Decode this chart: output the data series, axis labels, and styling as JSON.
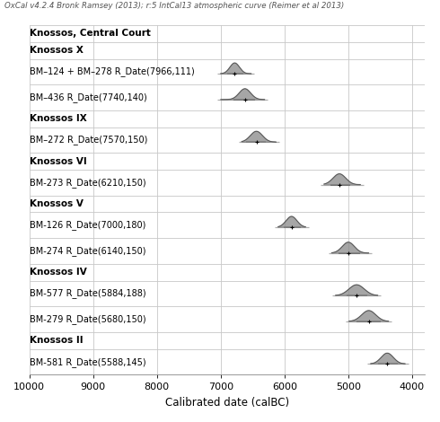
{
  "title": "OxCal v4.2.4 Bronk Ramsey (2013); r:5 IntCal13 atmospheric curve (Reimer et al 2013)",
  "xlabel": "Calibrated date (calBC)",
  "xlim": [
    10000,
    3800
  ],
  "xticks": [
    10000,
    9000,
    8000,
    7000,
    6000,
    5000,
    4000
  ],
  "background": "#ffffff",
  "grid_color": "#c8c8c8",
  "dist_color": "#888888",
  "dist_edge": "#444444",
  "label_fontsize": 7.0,
  "group_label_fontsize": 7.5,
  "title_fontsize": 6.2,
  "sections": [
    {
      "group_label": "Knossos, Central Court",
      "samples": []
    },
    {
      "group_label": "Knossos X",
      "samples": [
        {
          "label": "BM–124 + BM–278 R_Date(7966,111)",
          "cal_mean": 6780,
          "cal_sigma": 75,
          "r1lo": 6900,
          "r1hi": 6640,
          "r2lo": 7050,
          "r2hi": 6470
        },
        {
          "label": "BM–436 R_Date(7740,140)",
          "cal_mean": 6620,
          "cal_sigma": 90,
          "r1lo": 6800,
          "r1hi": 6460,
          "r2lo": 7050,
          "r2hi": 6260
        }
      ]
    },
    {
      "group_label": "Knossos IX",
      "samples": [
        {
          "label": "BM–272 R_Date(7570,150)",
          "cal_mean": 6440,
          "cal_sigma": 95,
          "r1lo": 6600,
          "r1hi": 6290,
          "r2lo": 6720,
          "r2hi": 6080
        }
      ]
    },
    {
      "group_label": "Knossos VI",
      "samples": [
        {
          "label": "BM-273 R_Date(6210,150)",
          "cal_mean": 5140,
          "cal_sigma": 100,
          "r1lo": 5280,
          "r1hi": 4970,
          "r2lo": 5430,
          "r2hi": 4760
        }
      ]
    },
    {
      "group_label": "Knossos V",
      "samples": [
        {
          "label": "BM-126 R_Date(7000,180)",
          "cal_mean": 5890,
          "cal_sigma": 85,
          "r1lo": 6010,
          "r1hi": 5750,
          "r2lo": 6150,
          "r2hi": 5620
        },
        {
          "label": "BM-274 R_Date(6140,150)",
          "cal_mean": 5000,
          "cal_sigma": 95,
          "r1lo": 5150,
          "r1hi": 4820,
          "r2lo": 5310,
          "r2hi": 4630
        }
      ]
    },
    {
      "group_label": "Knossos IV",
      "samples": [
        {
          "label": "BM-577 R_Date(5884,188)",
          "cal_mean": 4870,
          "cal_sigma": 120,
          "r1lo": 5020,
          "r1hi": 4700,
          "r2lo": 5250,
          "r2hi": 4490
        },
        {
          "label": "BM-279 R_Date(5680,150)",
          "cal_mean": 4680,
          "cal_sigma": 110,
          "r1lo": 4870,
          "r1hi": 4490,
          "r2lo": 5040,
          "r2hi": 4320
        }
      ]
    },
    {
      "group_label": "Knossos II",
      "samples": [
        {
          "label": "BM-581 R_Date(5588,145)",
          "cal_mean": 4390,
          "cal_sigma": 95,
          "r1lo": 4530,
          "r1hi": 4230,
          "r2lo": 4700,
          "r2hi": 4060
        }
      ]
    }
  ]
}
